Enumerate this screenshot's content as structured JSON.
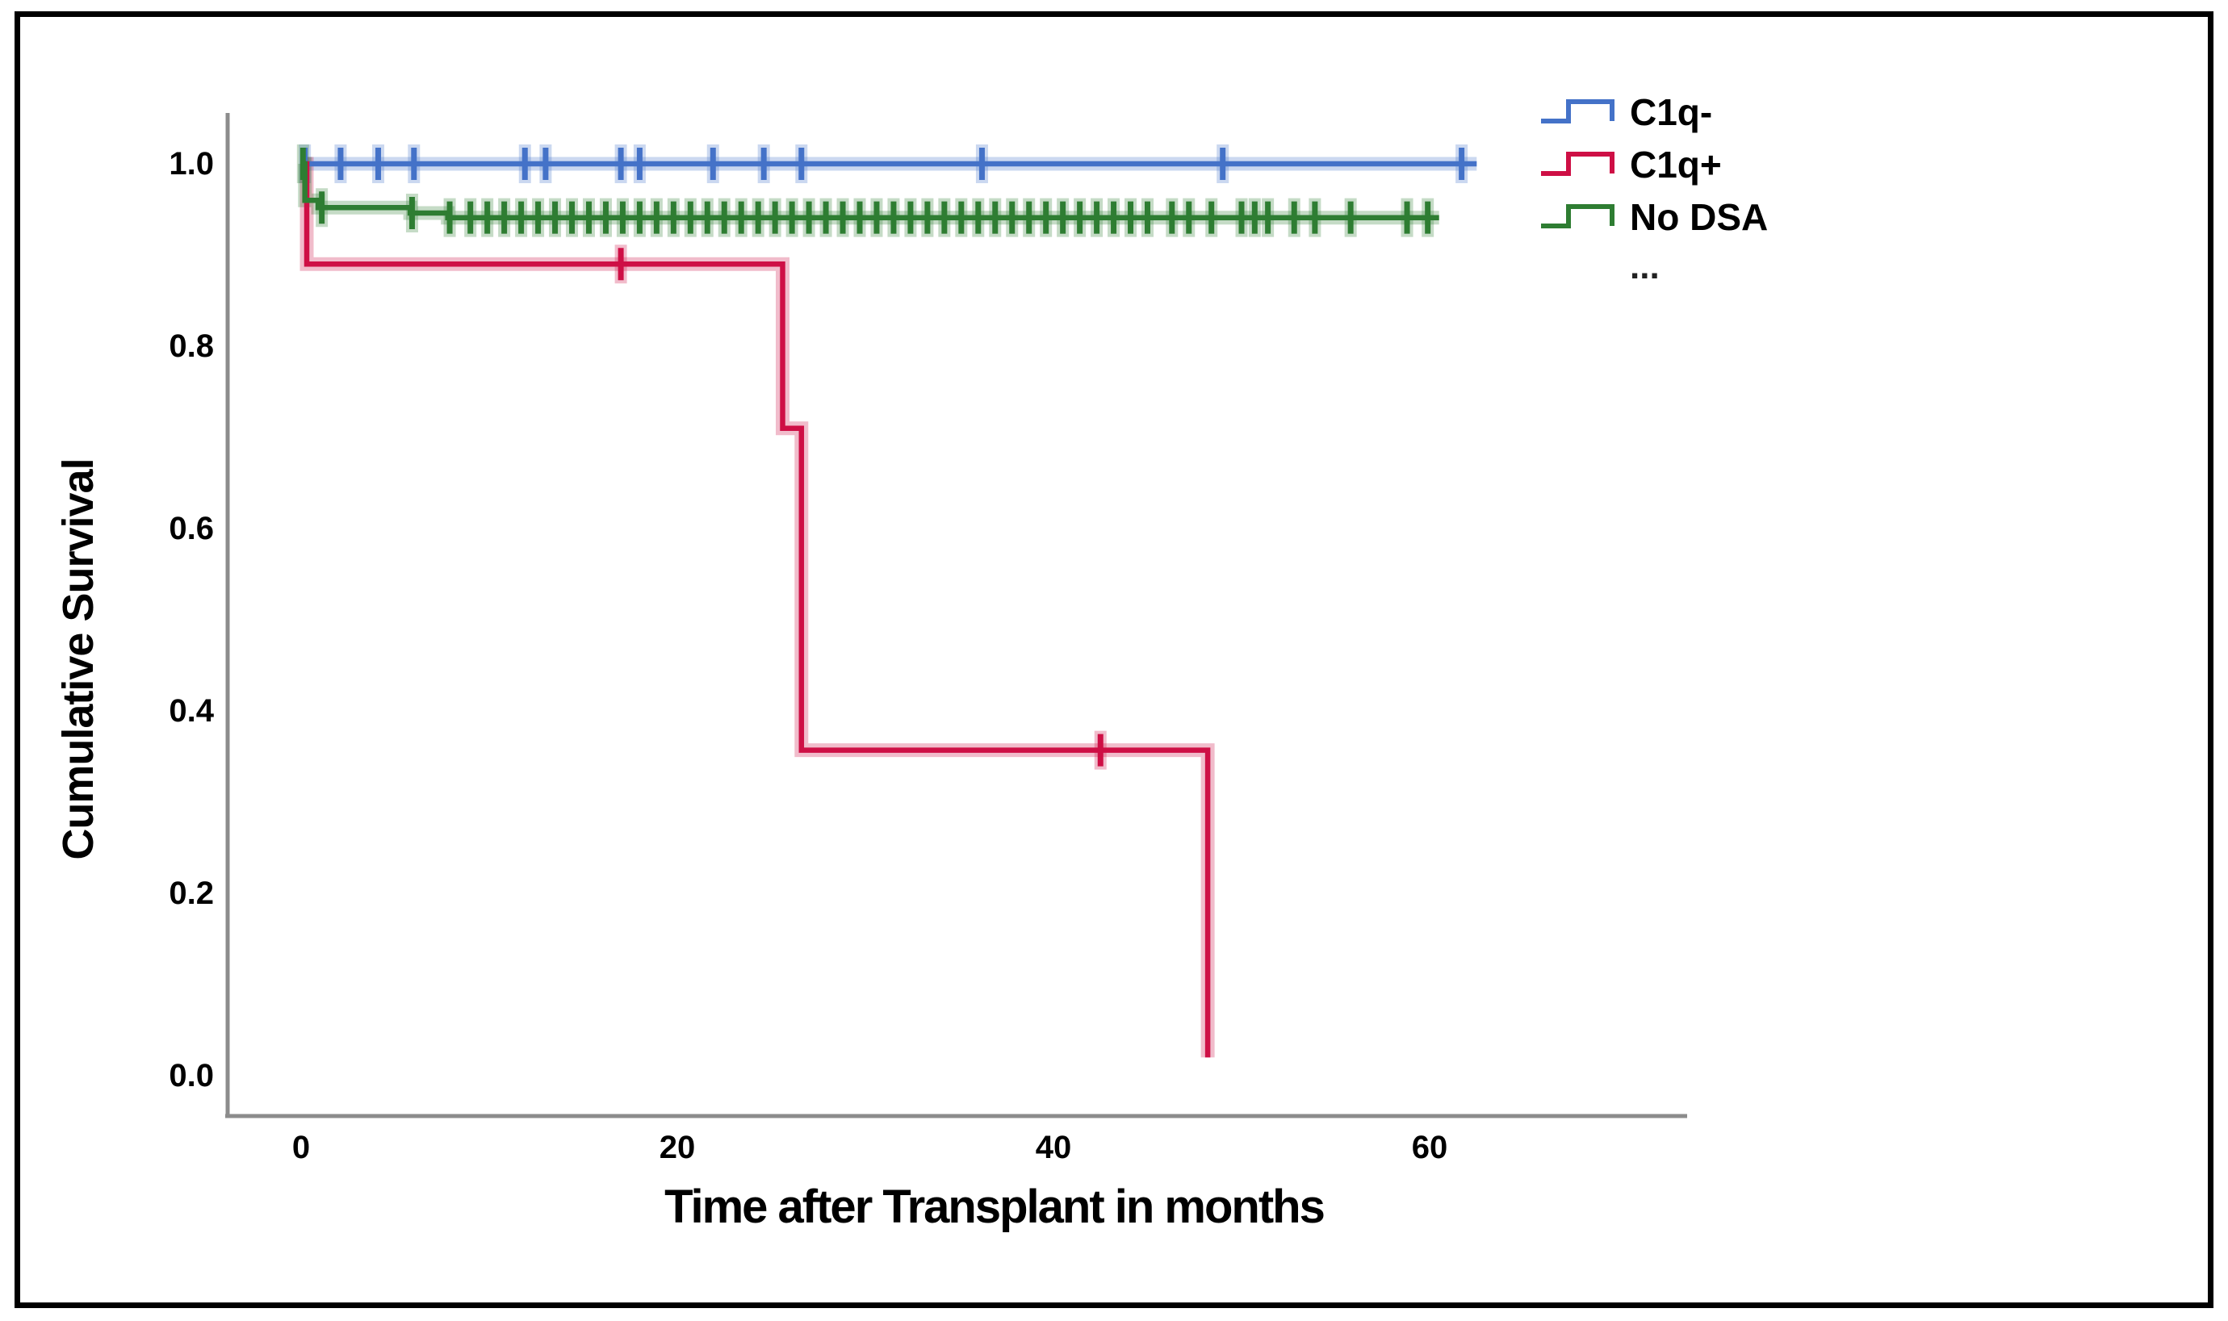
{
  "figure": {
    "background": "#FFFFFF",
    "border_color": "#000000"
  },
  "chart_data": {
    "type": "line",
    "subtype": "kaplan-meier-step",
    "title": "",
    "xlabel": "Time after Transplant in months",
    "ylabel": "Cumulative Survival",
    "xlim": [
      -4,
      73.5
    ],
    "ylim": [
      -0.045,
      1.055
    ],
    "x_ticks": [
      0,
      20,
      40,
      60
    ],
    "y_ticks": [
      1.0,
      0.8,
      0.6,
      0.4,
      0.2,
      0.0
    ],
    "x_tick_labels": [
      "0",
      "20",
      "40",
      "60"
    ],
    "y_tick_labels": [
      "1.0",
      "0.8",
      "0.6",
      "0.4",
      "0.2",
      "0.0"
    ],
    "grid": false,
    "axis_color": "#8C8C8C",
    "legend_position": "top-right",
    "legend_ellipsis": "...",
    "series": [
      {
        "name": "C1q-",
        "color": "#4472C8",
        "steps": [
          [
            0,
            1.0
          ],
          [
            62.5,
            1.0
          ]
        ],
        "censors": [
          [
            0.2,
            1.0
          ],
          [
            2.1,
            1.0
          ],
          [
            4.1,
            1.0
          ],
          [
            6.0,
            1.0
          ],
          [
            11.9,
            1.0
          ],
          [
            13.0,
            1.0
          ],
          [
            17.0,
            1.0
          ],
          [
            18.0,
            1.0
          ],
          [
            21.9,
            1.0
          ],
          [
            24.6,
            1.0
          ],
          [
            26.6,
            1.0
          ],
          [
            36.2,
            1.0
          ],
          [
            49.0,
            1.0
          ],
          [
            61.7,
            1.0
          ]
        ]
      },
      {
        "name": "C1q+",
        "color": "#CE0F45",
        "steps": [
          [
            0,
            1.0
          ],
          [
            0.3,
            1.0
          ],
          [
            0.3,
            0.89
          ],
          [
            25.6,
            0.89
          ],
          [
            25.6,
            0.71
          ],
          [
            26.6,
            0.71
          ],
          [
            26.6,
            0.357
          ],
          [
            48.2,
            0.357
          ],
          [
            48.2,
            0.02
          ]
        ],
        "censors": [
          [
            17.0,
            0.89
          ],
          [
            42.5,
            0.357
          ]
        ]
      },
      {
        "name": "No DSA",
        "color": "#2E7D32",
        "steps": [
          [
            0,
            1.0
          ],
          [
            0.2,
            1.0
          ],
          [
            0.2,
            0.96
          ],
          [
            0.9,
            0.96
          ],
          [
            0.9,
            0.952
          ],
          [
            5.8,
            0.952
          ],
          [
            5.8,
            0.946
          ],
          [
            7.8,
            0.946
          ],
          [
            7.8,
            0.941
          ],
          [
            60.5,
            0.941
          ]
        ],
        "censors": [
          [
            0.1,
            1.0
          ],
          [
            1.1,
            0.952
          ],
          [
            5.9,
            0.946
          ],
          [
            7.9,
            0.941
          ],
          [
            9.0,
            0.941
          ],
          [
            9.9,
            0.941
          ],
          [
            10.8,
            0.941
          ],
          [
            11.7,
            0.941
          ],
          [
            12.6,
            0.941
          ],
          [
            13.5,
            0.941
          ],
          [
            14.4,
            0.941
          ],
          [
            15.3,
            0.941
          ],
          [
            16.2,
            0.941
          ],
          [
            17.1,
            0.941
          ],
          [
            18.0,
            0.941
          ],
          [
            18.9,
            0.941
          ],
          [
            19.8,
            0.941
          ],
          [
            20.7,
            0.941
          ],
          [
            21.6,
            0.941
          ],
          [
            22.5,
            0.941
          ],
          [
            23.4,
            0.941
          ],
          [
            24.3,
            0.941
          ],
          [
            25.2,
            0.941
          ],
          [
            26.1,
            0.941
          ],
          [
            27.0,
            0.941
          ],
          [
            27.9,
            0.941
          ],
          [
            28.8,
            0.941
          ],
          [
            29.7,
            0.941
          ],
          [
            30.6,
            0.941
          ],
          [
            31.5,
            0.941
          ],
          [
            32.4,
            0.941
          ],
          [
            33.3,
            0.941
          ],
          [
            34.2,
            0.941
          ],
          [
            35.1,
            0.941
          ],
          [
            36.0,
            0.941
          ],
          [
            36.9,
            0.941
          ],
          [
            37.8,
            0.941
          ],
          [
            38.7,
            0.941
          ],
          [
            39.6,
            0.941
          ],
          [
            40.5,
            0.941
          ],
          [
            41.4,
            0.941
          ],
          [
            42.3,
            0.941
          ],
          [
            43.2,
            0.941
          ],
          [
            44.1,
            0.941
          ],
          [
            45.0,
            0.941
          ],
          [
            46.3,
            0.941
          ],
          [
            47.2,
            0.941
          ],
          [
            48.4,
            0.941
          ],
          [
            50.0,
            0.941
          ],
          [
            50.7,
            0.941
          ],
          [
            51.4,
            0.941
          ],
          [
            52.8,
            0.941
          ],
          [
            53.9,
            0.941
          ],
          [
            55.8,
            0.941
          ],
          [
            58.8,
            0.941
          ],
          [
            59.9,
            0.941
          ]
        ]
      }
    ]
  }
}
